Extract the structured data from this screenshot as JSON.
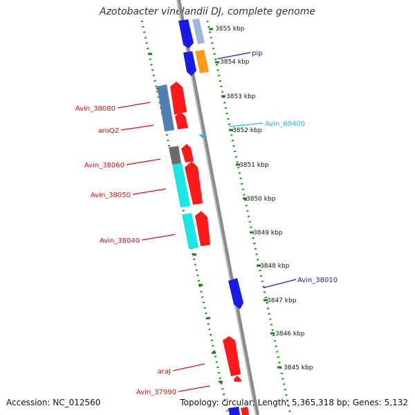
{
  "title": "Azotobacter vinelandii DJ, complete genome",
  "footer": {
    "accession": "Accession: NC_012560",
    "topology": "Topology: circular; Length: 5,365,318 bp; Genes: 5,132"
  },
  "ruler_labels": [
    "3855 kbp",
    "3854 kbp",
    "3853 kbp",
    "3852 kbp",
    "3851 kbp",
    "3850 kbp",
    "3849 kbp",
    "3848 kbp",
    "3847 kbp",
    "3846 kbp",
    "3845 kbp"
  ],
  "gene_labels": [
    {
      "text": "pip",
      "color": "#1a1ac8"
    },
    {
      "text": "Avin_60400",
      "color": "#29b6e6"
    },
    {
      "text": "Avin_38080",
      "color": "#dd1111"
    },
    {
      "text": "aroQ2",
      "color": "#dd1111"
    },
    {
      "text": "Avin_38060",
      "color": "#dd1111"
    },
    {
      "text": "Avin_38050",
      "color": "#dd1111"
    },
    {
      "text": "Avin_38040",
      "color": "#dd1111"
    },
    {
      "text": "Avin_38010",
      "color": "#1a1ac8"
    },
    {
      "text": "araJ",
      "color": "#dd1111"
    },
    {
      "text": "Avin_37990",
      "color": "#dd1111"
    }
  ],
  "colors": {
    "backbone": "#8a8a8a",
    "dots": "#1f8a1f",
    "red_gene": "#ff1a1a",
    "blue_gene": "#1a1ae6",
    "steel_gene": "#4f7fb5",
    "cyan_gene": "#1ae6e6",
    "orange_gene": "#ff9a1a",
    "gray_gene": "#6b6b6b"
  }
}
